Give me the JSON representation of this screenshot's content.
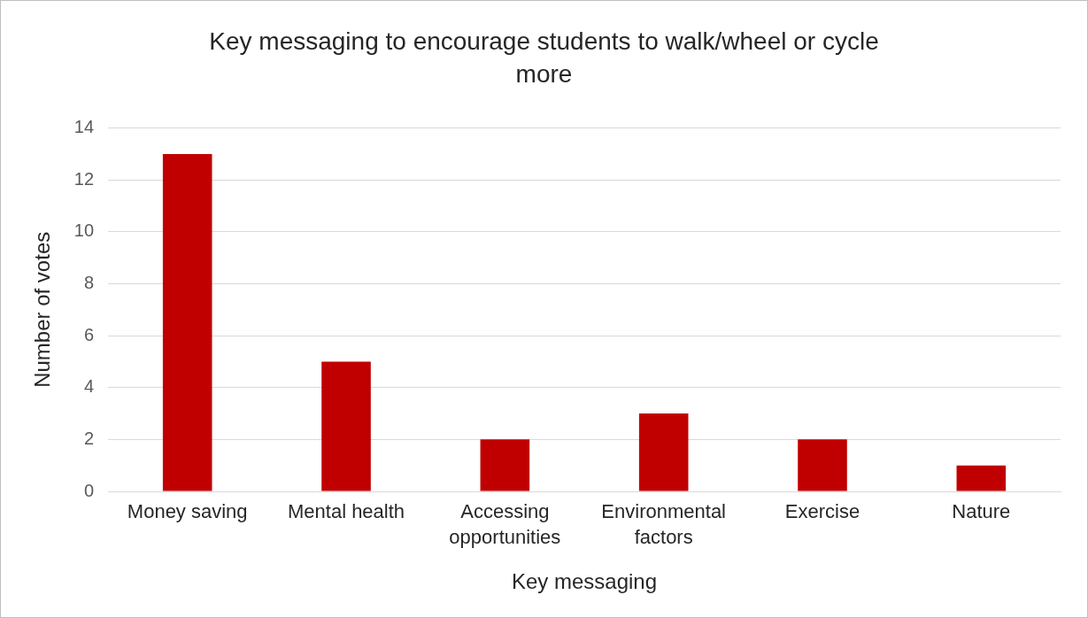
{
  "chart_data": {
    "type": "bar",
    "title": "Key messaging to encourage students to walk/wheel or cycle more",
    "x_label": "Key messaging",
    "y_label": "Number of votes",
    "categories": [
      "Money saving",
      "Mental health",
      "Accessing opportunities",
      "Environmental factors",
      "Exercise",
      "Nature"
    ],
    "values": [
      13,
      5,
      2,
      3,
      2,
      1
    ],
    "color": "#c00000",
    "ylim": [
      0,
      14
    ],
    "yticks": [
      0,
      2,
      4,
      6,
      8,
      10,
      12,
      14
    ],
    "grid": true
  }
}
